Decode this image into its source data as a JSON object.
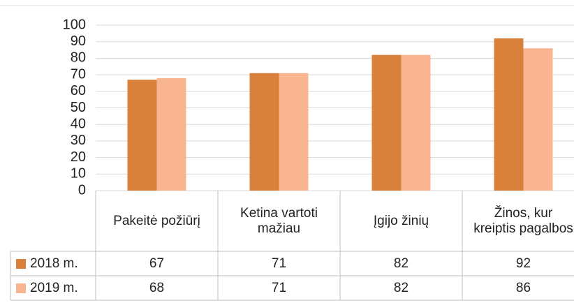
{
  "chart_data": {
    "type": "bar",
    "categories": [
      "Pakeitė požiūrį",
      "Ketina vartoti mažiau",
      "Įgijo žinių",
      "Žinos, kur kreiptis pagalbos"
    ],
    "series": [
      {
        "name": "2018 m.",
        "color": "#d9813b",
        "values": [
          67,
          71,
          82,
          92
        ]
      },
      {
        "name": "2019 m.",
        "color": "#f8b58f",
        "values": [
          68,
          71,
          82,
          86
        ]
      }
    ],
    "ylim": [
      0,
      100
    ],
    "yticks": [
      0,
      10,
      20,
      30,
      40,
      50,
      60,
      70,
      80,
      90,
      100
    ],
    "grid": true,
    "data_table": true
  }
}
